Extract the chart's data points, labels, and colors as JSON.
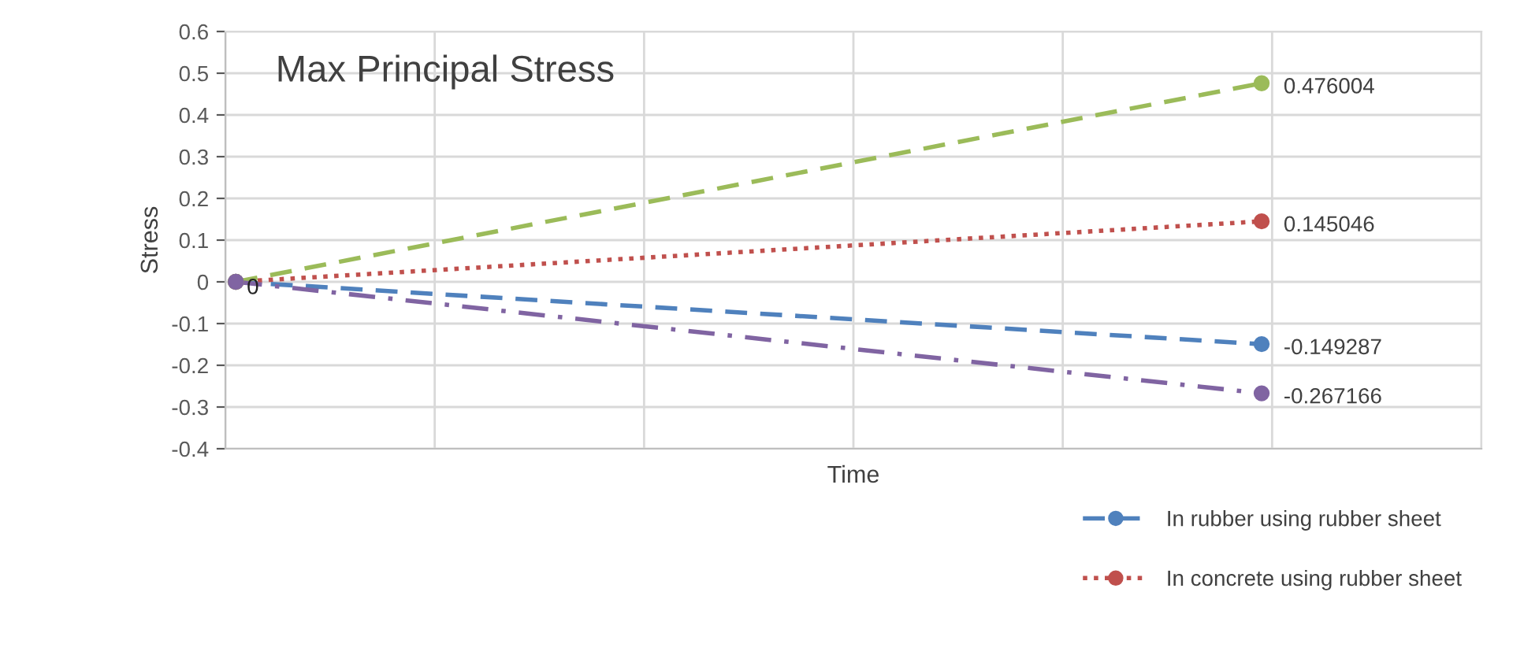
{
  "chart_data": {
    "type": "line",
    "title": "Max Principal Stress",
    "xlabel": "Time",
    "ylabel": "Stress",
    "categories": [
      null,
      null,
      null,
      null,
      null,
      null,
      null,
      null,
      null,
      null,
      null,
      null,
      null,
      null,
      null,
      null,
      null,
      null,
      null,
      null,
      null,
      null,
      null,
      null,
      null,
      null,
      null,
      null,
      null,
      null,
      null,
      null,
      null,
      null,
      null,
      null,
      null,
      null,
      null,
      null,
      null,
      null,
      null,
      null,
      null,
      null,
      null,
      null,
      null,
      null,
      null,
      null,
      null,
      null,
      null,
      null,
      null,
      null,
      null,
      null
    ],
    "series": [
      {
        "name": "In rubber using rubber sheet",
        "color": "#4f81bd",
        "line_style": "dashed",
        "values": [
          0,
          null,
          null,
          null,
          null,
          null,
          null,
          null,
          null,
          null,
          null,
          null,
          null,
          null,
          null,
          null,
          null,
          null,
          null,
          null,
          null,
          null,
          null,
          null,
          null,
          null,
          null,
          null,
          null,
          null,
          null,
          null,
          null,
          null,
          null,
          null,
          null,
          null,
          null,
          null,
          null,
          null,
          null,
          null,
          null,
          null,
          null,
          null,
          null,
          -0.149287,
          null,
          null,
          null,
          null,
          null,
          null,
          null,
          null,
          null,
          null
        ],
        "value_labels": [
          "0",
          null,
          null,
          null,
          null,
          null,
          null,
          null,
          null,
          null,
          null,
          null,
          null,
          null,
          null,
          null,
          null,
          null,
          null,
          null,
          null,
          null,
          null,
          null,
          null,
          null,
          null,
          null,
          null,
          null,
          null,
          null,
          null,
          null,
          null,
          null,
          null,
          null,
          null,
          null,
          null,
          null,
          null,
          null,
          null,
          null,
          null,
          null,
          null,
          "-0.149287",
          null,
          null,
          null,
          null,
          null,
          null,
          null,
          null,
          null,
          null
        ]
      },
      {
        "name": "In concrete using rubber sheet",
        "color": "#c0504d",
        "line_style": "dotted",
        "values": [
          0,
          null,
          null,
          null,
          null,
          null,
          null,
          null,
          null,
          null,
          null,
          null,
          null,
          null,
          null,
          null,
          null,
          null,
          null,
          null,
          null,
          null,
          null,
          null,
          null,
          null,
          null,
          null,
          null,
          null,
          null,
          null,
          null,
          null,
          null,
          null,
          null,
          null,
          null,
          null,
          null,
          null,
          null,
          null,
          null,
          null,
          null,
          null,
          null,
          0.145046,
          null,
          null,
          null,
          null,
          null,
          null,
          null,
          null,
          null,
          null
        ],
        "value_labels": [
          null,
          null,
          null,
          null,
          null,
          null,
          null,
          null,
          null,
          null,
          null,
          null,
          null,
          null,
          null,
          null,
          null,
          null,
          null,
          null,
          null,
          null,
          null,
          null,
          null,
          null,
          null,
          null,
          null,
          null,
          null,
          null,
          null,
          null,
          null,
          null,
          null,
          null,
          null,
          null,
          null,
          null,
          null,
          null,
          null,
          null,
          null,
          null,
          null,
          "0.145046",
          null,
          null,
          null,
          null,
          null,
          null,
          null,
          null,
          null,
          null
        ]
      },
      {
        "color": "#9bbb59",
        "line_style": "dashed",
        "values": [
          0,
          null,
          null,
          null,
          null,
          null,
          null,
          null,
          null,
          null,
          null,
          null,
          null,
          null,
          null,
          null,
          null,
          null,
          null,
          null,
          null,
          null,
          null,
          null,
          null,
          null,
          null,
          null,
          null,
          null,
          null,
          null,
          null,
          null,
          null,
          null,
          null,
          null,
          null,
          null,
          null,
          null,
          null,
          null,
          null,
          null,
          null,
          null,
          null,
          0.476004,
          null,
          null,
          null,
          null,
          null,
          null,
          null,
          null,
          null,
          null
        ],
        "value_labels": [
          null,
          null,
          null,
          null,
          null,
          null,
          null,
          null,
          null,
          null,
          null,
          null,
          null,
          null,
          null,
          null,
          null,
          null,
          null,
          null,
          null,
          null,
          null,
          null,
          null,
          null,
          null,
          null,
          null,
          null,
          null,
          null,
          null,
          null,
          null,
          null,
          null,
          null,
          null,
          null,
          null,
          null,
          null,
          null,
          null,
          null,
          null,
          null,
          null,
          "0.476004",
          null,
          null,
          null,
          null,
          null,
          null,
          null,
          null,
          null,
          null
        ]
      },
      {
        "color": "#8064a2",
        "line_style": "dashdot",
        "values": [
          0,
          null,
          null,
          null,
          null,
          null,
          null,
          null,
          null,
          null,
          null,
          null,
          null,
          null,
          null,
          null,
          null,
          null,
          null,
          null,
          null,
          null,
          null,
          null,
          null,
          null,
          null,
          null,
          null,
          null,
          null,
          null,
          null,
          null,
          null,
          null,
          null,
          null,
          null,
          null,
          null,
          null,
          null,
          null,
          null,
          null,
          null,
          null,
          null,
          -0.267166,
          null,
          null,
          null,
          null,
          null,
          null,
          null,
          null,
          null,
          null
        ],
        "value_labels": [
          null,
          null,
          null,
          null,
          null,
          null,
          null,
          null,
          null,
          null,
          null,
          null,
          null,
          null,
          null,
          null,
          null,
          null,
          null,
          null,
          null,
          null,
          null,
          null,
          null,
          null,
          null,
          null,
          null,
          null,
          null,
          null,
          null,
          null,
          null,
          null,
          null,
          null,
          null,
          null,
          null,
          null,
          null,
          null,
          null,
          null,
          null,
          null,
          null,
          "-0.267166",
          null,
          null,
          null,
          null,
          null,
          null,
          null,
          null,
          null,
          null
        ]
      }
    ],
    "ylim": [
      -0.4,
      0.6
    ],
    "yticks": [
      -0.4,
      -0.3,
      -0.2,
      -0.1,
      0,
      0.1,
      0.2,
      0.3,
      0.4,
      0.5,
      0.6
    ],
    "grid": true,
    "legend": "bottom right",
    "marker": "circle"
  }
}
